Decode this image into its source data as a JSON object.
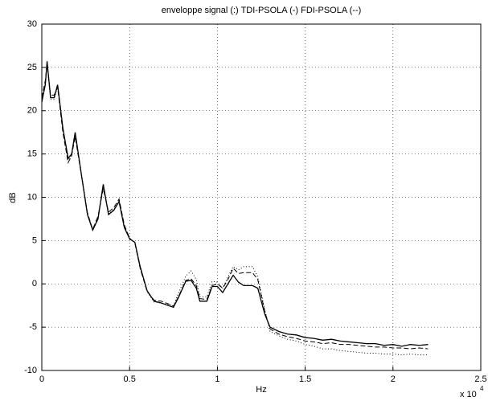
{
  "chart_data": {
    "type": "line",
    "title": "enveloppe signal (:) TDI-PSOLA (-) FDI-PSOLA (--)",
    "x_label": "Hz",
    "y_label": "dB",
    "x_scale_label": "x 10",
    "x_scale_exponent": "4",
    "xlim": [
      0,
      2.5
    ],
    "xticks": [
      0,
      0.5,
      1,
      1.5,
      2,
      2.5
    ],
    "ylim": [
      -10,
      30
    ],
    "yticks": [
      -10,
      -5,
      0,
      5,
      10,
      15,
      20,
      25,
      30
    ],
    "grid": true,
    "x": [
      0,
      0.02,
      0.03,
      0.05,
      0.07,
      0.09,
      0.12,
      0.15,
      0.17,
      0.19,
      0.23,
      0.26,
      0.29,
      0.32,
      0.35,
      0.38,
      0.41,
      0.44,
      0.47,
      0.5,
      0.53,
      0.56,
      0.6,
      0.64,
      0.68,
      0.72,
      0.75,
      0.78,
      0.82,
      0.85,
      0.88,
      0.9,
      0.94,
      0.97,
      1.0,
      1.03,
      1.06,
      1.09,
      1.12,
      1.15,
      1.2,
      1.23,
      1.27,
      1.3,
      1.35,
      1.4,
      1.45,
      1.5,
      1.55,
      1.6,
      1.65,
      1.7,
      1.75,
      1.8,
      1.85,
      1.9,
      1.95,
      2.0,
      2.05,
      2.1,
      2.15,
      2.2
    ],
    "series": [
      {
        "color": "#000000",
        "style": "dotted",
        "values": [
          21,
          23.2,
          25.5,
          21.3,
          21.3,
          22.8,
          17.8,
          14.3,
          14.9,
          17.3,
          12.2,
          8.1,
          6.2,
          7.6,
          11.3,
          8.1,
          8.6,
          9.6,
          6.6,
          5.2,
          4.8,
          1.9,
          -0.9,
          -2.1,
          -2.2,
          -2.4,
          -2.5,
          -1,
          0.9,
          1.5,
          0.5,
          -1.5,
          -1.5,
          0.3,
          0.2,
          -0.5,
          0.8,
          2,
          1.6,
          2,
          2,
          0.8,
          -3,
          -5.5,
          -6,
          -6.4,
          -6.6,
          -7,
          -7.2,
          -7.5,
          -7.5,
          -7.7,
          -7.8,
          -7.9,
          -8,
          -8,
          -8.1,
          -8.1,
          -8.2,
          -8.1,
          -8.2,
          -8.2
        ]
      },
      {
        "color": "#000000",
        "style": "solid",
        "values": [
          21,
          23,
          25.7,
          21.5,
          21.5,
          23,
          18,
          14.5,
          15,
          17.5,
          12,
          8,
          6.2,
          7.5,
          11.5,
          8,
          8.5,
          9.5,
          6.5,
          5.2,
          4.8,
          2,
          -0.8,
          -2,
          -2.2,
          -2.5,
          -2.7,
          -1.5,
          0.3,
          0.4,
          -0.5,
          -2,
          -2,
          -0.3,
          -0.3,
          -1,
          0,
          1,
          0.2,
          -0.2,
          -0.2,
          -0.5,
          -3.5,
          -5,
          -5.5,
          -5.8,
          -5.9,
          -6.2,
          -6.3,
          -6.5,
          -6.4,
          -6.6,
          -6.7,
          -6.8,
          -6.9,
          -6.9,
          -7.1,
          -7,
          -7.2,
          -7,
          -7.1,
          -7
        ]
      },
      {
        "color": "#000000",
        "style": "dashed",
        "values": [
          21.5,
          23.5,
          25.3,
          21.8,
          21.8,
          22.7,
          17.5,
          14,
          14.8,
          17,
          12,
          8.2,
          6.3,
          7.8,
          11,
          8.3,
          8.8,
          9.8,
          6.8,
          5.3,
          4.7,
          1.8,
          -0.9,
          -1.9,
          -2,
          -2.3,
          -2.6,
          -1.4,
          0.4,
          0.6,
          -0.2,
          -1.7,
          -1.8,
          -0.2,
          0,
          -0.5,
          0.5,
          1.8,
          1.2,
          1.3,
          1.3,
          0.5,
          -3.2,
          -5.2,
          -5.8,
          -6.1,
          -6.3,
          -6.6,
          -6.7,
          -6.9,
          -6.8,
          -7,
          -7,
          -7.1,
          -7.2,
          -7.3,
          -7.3,
          -7.4,
          -7.4,
          -7.5,
          -7.4,
          -7.5
        ]
      }
    ]
  }
}
